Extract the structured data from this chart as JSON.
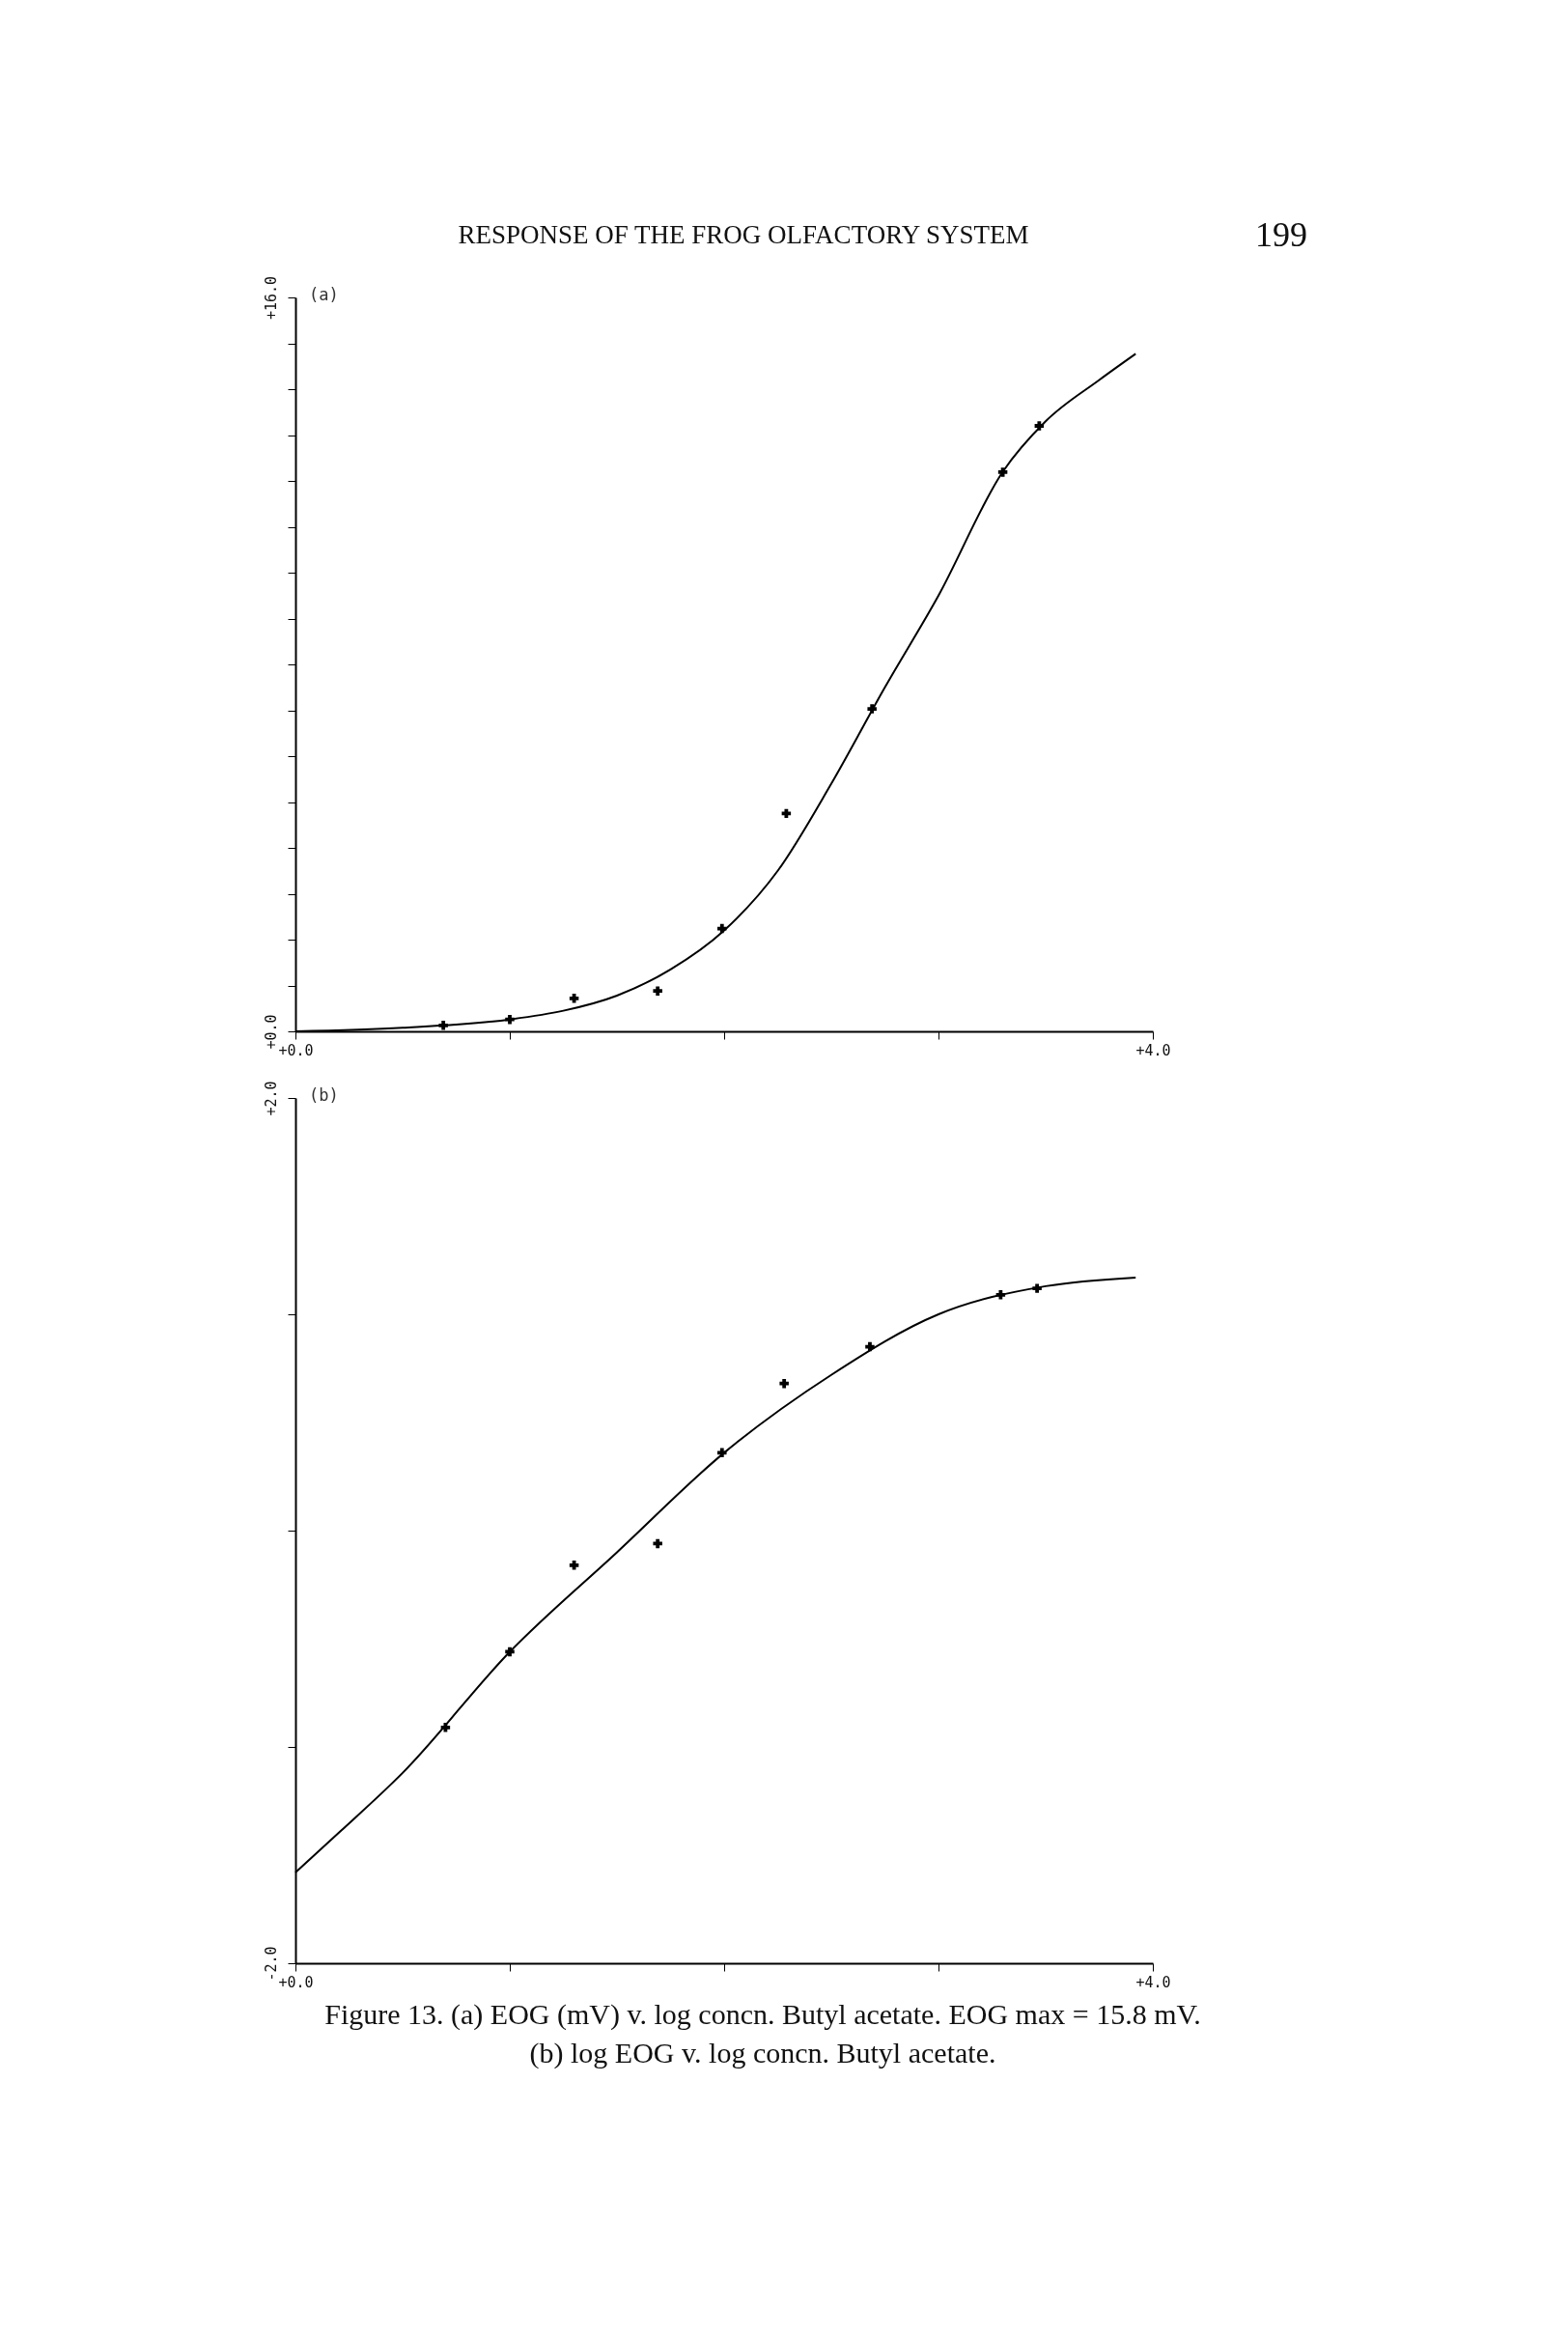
{
  "chart_data": [
    {
      "type": "scatter",
      "title": "(a)",
      "annotations": [
        "RESPONSE OF THE FROG OLFACTORY SYSTEM",
        "199"
      ],
      "xlim": [
        0,
        4
      ],
      "xticks": [
        {
          "value": 0,
          "label": "+0.0"
        },
        {
          "value": 1,
          "label": null
        },
        {
          "value": 2,
          "label": null
        },
        {
          "value": 3,
          "label": null
        },
        {
          "value": 4,
          "label": "+4.0"
        }
      ],
      "ylim": [
        0,
        16
      ],
      "yticks": [
        {
          "value": 0,
          "label": "+0.0"
        },
        {
          "value": 1,
          "label": null
        },
        {
          "value": 2,
          "label": null
        },
        {
          "value": 3,
          "label": null
        },
        {
          "value": 4,
          "label": null
        },
        {
          "value": 5,
          "label": null
        },
        {
          "value": 6,
          "label": null
        },
        {
          "value": 7,
          "label": null
        },
        {
          "value": 8,
          "label": null
        },
        {
          "value": 9,
          "label": null
        },
        {
          "value": 10,
          "label": null
        },
        {
          "value": 11,
          "label": null
        },
        {
          "value": 12,
          "label": null
        },
        {
          "value": 13,
          "label": null
        },
        {
          "value": 14,
          "label": null
        },
        {
          "value": 15,
          "label": null
        },
        {
          "value": 16,
          "label": "+16.0"
        }
      ],
      "series": [
        {
          "type": "scatter",
          "marker": "cross",
          "color": "#000000",
          "x": [
            0.69,
            1.0,
            1.3,
            1.69,
            1.99,
            2.29,
            2.69,
            3.3,
            3.47
          ],
          "values": [
            0.13,
            0.26,
            0.72,
            0.88,
            2.24,
            4.75,
            7.03,
            12.19,
            13.2
          ]
        },
        {
          "type": "line",
          "color": "#000000",
          "x": [
            0,
            0.5,
            1.0,
            1.25,
            1.5,
            1.75,
            2.0,
            2.25,
            2.5,
            2.75,
            3.0,
            3.3,
            3.5,
            3.75,
            3.92
          ],
          "values": [
            0,
            0.08,
            0.26,
            0.45,
            0.78,
            1.35,
            2.2,
            3.5,
            5.4,
            7.5,
            9.5,
            12.2,
            13.3,
            14.2,
            14.77
          ]
        }
      ]
    },
    {
      "type": "scatter",
      "title": "(b)",
      "annotations": [
        "Figure 13. (a) EOG (mV) v. log concn. Butyl acetate. EOG max = 15.8 mV.",
        "(b) log EOG v. log concn. Butyl acetate."
      ],
      "xlim": [
        0,
        4
      ],
      "xticks": [
        {
          "value": 0,
          "label": "+0.0"
        },
        {
          "value": 1,
          "label": null
        },
        {
          "value": 2,
          "label": null
        },
        {
          "value": 3,
          "label": null
        },
        {
          "value": 4,
          "label": "+4.0"
        }
      ],
      "ylim": [
        -2,
        2
      ],
      "yticks": [
        {
          "value": -2,
          "label": "-2.0"
        },
        {
          "value": -1,
          "label": null
        },
        {
          "value": 0,
          "label": null
        },
        {
          "value": 1,
          "label": null
        },
        {
          "value": 2,
          "label": "+2.0"
        }
      ],
      "series": [
        {
          "type": "scatter",
          "marker": "cross",
          "color": "#000000",
          "x": [
            0.7,
            1.0,
            1.3,
            1.69,
            1.99,
            2.28,
            2.68,
            3.29,
            3.46
          ],
          "values": [
            -0.91,
            -0.56,
            -0.16,
            -0.06,
            0.36,
            0.68,
            0.85,
            1.09,
            1.12
          ]
        },
        {
          "type": "line",
          "color": "#000000",
          "x": [
            0,
            0.21,
            0.5,
            1.0,
            1.5,
            2.0,
            2.5,
            3.0,
            3.5,
            3.92
          ],
          "values": [
            -1.58,
            -1.39,
            -1.12,
            -0.56,
            -0.1,
            0.36,
            0.72,
            1.0,
            1.13,
            1.17
          ]
        }
      ]
    }
  ]
}
